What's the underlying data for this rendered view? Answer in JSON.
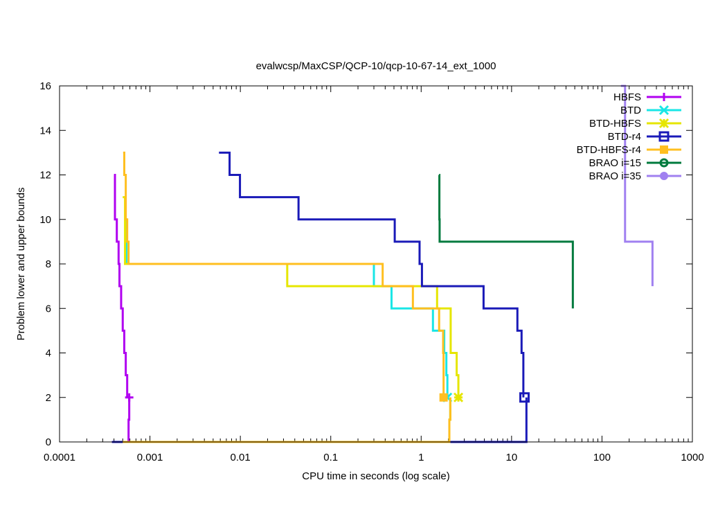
{
  "chart_data": {
    "type": "line",
    "title": "evalwcsp/MaxCSP/QCP-10/qcp-10-67-14_ext_1000",
    "xlabel": "CPU time in seconds (log scale)",
    "ylabel": "Problem lower and upper bounds",
    "xscale": "log",
    "xlim": [
      0.0001,
      1000
    ],
    "ylim": [
      0,
      16
    ],
    "xticks": [
      0.0001,
      0.001,
      0.01,
      0.1,
      1,
      10,
      100,
      1000
    ],
    "xtick_labels": [
      "0.0001",
      "0.001",
      "0.01",
      "0.1",
      "1",
      "10",
      "100",
      "1000"
    ],
    "yticks": [
      0,
      2,
      4,
      6,
      8,
      10,
      12,
      14,
      16
    ],
    "ytick_labels": [
      "0",
      "2",
      "4",
      "6",
      "8",
      "10",
      "12",
      "14",
      "16"
    ],
    "grid": false,
    "legend_position": "top-right",
    "series": [
      {
        "name": "HBFS",
        "color": "#b000f0",
        "marker": "plus",
        "upper": [
          [
            0.0004,
            12
          ],
          [
            0.00041,
            10
          ],
          [
            0.00043,
            9
          ],
          [
            0.00045,
            8
          ],
          [
            0.00046,
            7
          ],
          [
            0.00048,
            6
          ],
          [
            0.0005,
            5
          ],
          [
            0.00052,
            4
          ],
          [
            0.00054,
            3
          ],
          [
            0.00056,
            2
          ]
        ],
        "lower": [
          [
            0.00038,
            0
          ],
          [
            0.00058,
            1
          ],
          [
            0.00059,
            2
          ]
        ],
        "final": [
          0.00059,
          2
        ]
      },
      {
        "name": "BTD",
        "color": "#19e6e6",
        "marker": "cross",
        "upper": [
          [
            0.00052,
            10
          ],
          [
            0.00055,
            8
          ],
          [
            0.3,
            7
          ],
          [
            0.47,
            6
          ],
          [
            1.35,
            5
          ],
          [
            1.8,
            4
          ],
          [
            1.9,
            3
          ],
          [
            1.95,
            2
          ]
        ],
        "lower": [
          [
            0.0005,
            0
          ],
          [
            2.05,
            1
          ],
          [
            2.1,
            2
          ]
        ],
        "final": [
          1.95,
          2
        ]
      },
      {
        "name": "BTD-HBFS",
        "color": "#e6e600",
        "marker": "star",
        "upper": [
          [
            0.0005,
            11
          ],
          [
            0.00053,
            8
          ],
          [
            0.033,
            7
          ],
          [
            1.5,
            6
          ],
          [
            2.12,
            4
          ],
          [
            2.47,
            3
          ],
          [
            2.58,
            2
          ]
        ],
        "lower": [
          [
            0.0005,
            0
          ],
          [
            2.05,
            1
          ],
          [
            2.1,
            2
          ]
        ],
        "final": [
          2.58,
          2
        ]
      },
      {
        "name": "BTD-r4",
        "color": "#1a1ab8",
        "marker": "open-square",
        "upper": [
          [
            0.0058,
            13
          ],
          [
            0.0076,
            12
          ],
          [
            0.0099,
            11
          ],
          [
            0.044,
            10
          ],
          [
            0.51,
            9
          ],
          [
            0.96,
            8
          ],
          [
            1.02,
            7
          ],
          [
            4.9,
            6
          ],
          [
            11.6,
            5
          ],
          [
            12.9,
            4
          ],
          [
            13.5,
            2
          ]
        ],
        "lower": [
          [
            0.00038,
            0
          ],
          [
            14.6,
            2
          ]
        ],
        "final": [
          13.9,
          2
        ]
      },
      {
        "name": "BTD-HBFS-r4",
        "color": "#ffbf20",
        "marker": "filled-square",
        "upper": [
          [
            0.000505,
            13
          ],
          [
            0.00052,
            12
          ],
          [
            0.00054,
            10
          ],
          [
            0.00056,
            9
          ],
          [
            0.00058,
            8
          ],
          [
            0.375,
            7
          ],
          [
            0.81,
            6
          ],
          [
            1.58,
            5
          ],
          [
            1.75,
            4
          ],
          [
            1.77,
            2
          ]
        ],
        "lower": [
          [
            0.0005,
            0
          ],
          [
            2.05,
            1
          ],
          [
            2.1,
            2
          ]
        ],
        "final": [
          1.77,
          2
        ]
      },
      {
        "name": "BRAO i=15",
        "color": "#007a3d",
        "marker": "open-circle",
        "upper": [
          [
            1.58,
            12
          ],
          [
            1.59,
            10
          ],
          [
            1.6,
            9
          ],
          [
            47.6,
            6
          ]
        ],
        "lower": [],
        "final": null
      },
      {
        "name": "BRAO i=35",
        "color": "#a080f0",
        "marker": "filled-circle",
        "upper": [
          [
            162,
            16
          ],
          [
            180,
            9
          ],
          [
            362,
            7
          ]
        ],
        "lower": [],
        "final": null
      }
    ]
  }
}
